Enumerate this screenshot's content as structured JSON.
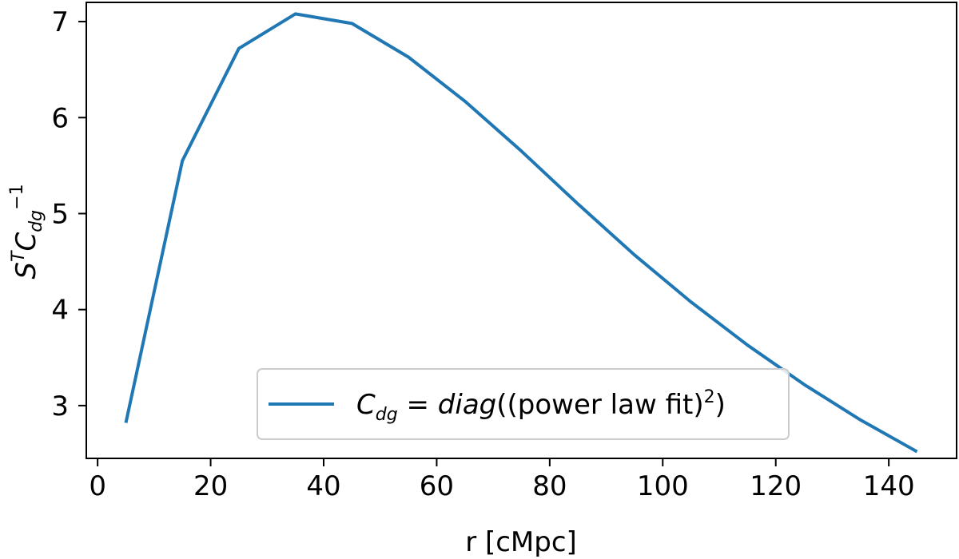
{
  "chart_data": {
    "type": "line",
    "title": "",
    "xlabel": "r [cMpc]",
    "ylabel": {
      "base": "S",
      "sup": "T",
      "c": "C",
      "sub": "dg",
      "exp": "−1"
    },
    "xlim": [
      -2,
      152
    ],
    "ylim": [
      2.45,
      7.2
    ],
    "xticks": [
      0,
      20,
      40,
      60,
      80,
      100,
      120,
      140
    ],
    "yticks": [
      3,
      4,
      5,
      6,
      7
    ],
    "grid": false,
    "legend_position": "lower-center",
    "series": [
      {
        "name": {
          "c": "C",
          "sub": "dg",
          "eq": " = ",
          "fn": "diag",
          "inner": "((power law fit)",
          "sup": "2",
          "close": ")"
        },
        "color": "#1f77b4",
        "x": [
          5,
          15,
          25,
          35,
          45,
          55,
          65,
          75,
          85,
          95,
          105,
          115,
          125,
          135,
          145
        ],
        "y": [
          2.82,
          5.55,
          6.72,
          7.08,
          6.98,
          6.63,
          6.17,
          5.65,
          5.1,
          4.57,
          4.08,
          3.63,
          3.22,
          2.85,
          2.52
        ]
      }
    ]
  }
}
